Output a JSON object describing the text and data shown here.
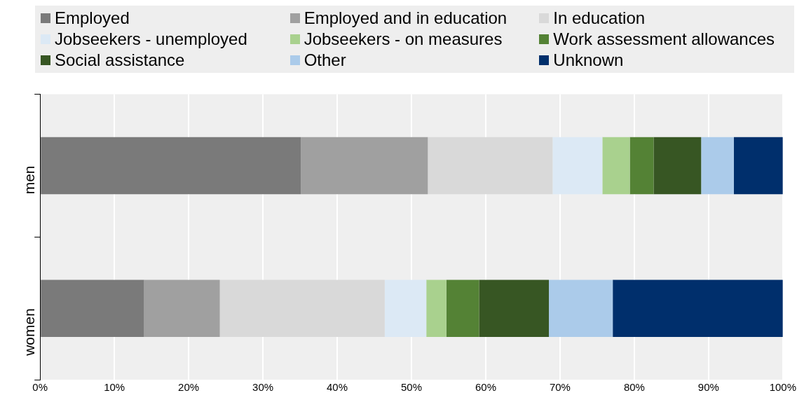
{
  "chart_data": {
    "type": "bar",
    "orientation": "horizontal",
    "stacked": true,
    "categories": [
      "men",
      "women"
    ],
    "series": [
      {
        "name": "Employed",
        "color": "#7a7a7a",
        "values": [
          35.1,
          14.0
        ]
      },
      {
        "name": "Employed and in education",
        "color": "#a0a0a0",
        "values": [
          17.1,
          10.2
        ]
      },
      {
        "name": "In education",
        "color": "#d9d9d9",
        "values": [
          16.8,
          22.2
        ]
      },
      {
        "name": "Jobseekers - unemployed",
        "color": "#dce9f5",
        "values": [
          6.7,
          5.6
        ]
      },
      {
        "name": "Jobseekers - on measures",
        "color": "#a9d18e",
        "values": [
          3.7,
          2.7
        ]
      },
      {
        "name": "Work assessment allowances",
        "color": "#548235",
        "values": [
          3.2,
          4.4
        ]
      },
      {
        "name": "Social assistance",
        "color": "#375623",
        "values": [
          6.4,
          9.4
        ]
      },
      {
        "name": "Other",
        "color": "#abcbea",
        "values": [
          4.4,
          8.6
        ]
      },
      {
        "name": "Unknown",
        "color": "#002f6c",
        "values": [
          6.6,
          22.9
        ]
      }
    ],
    "xlim": [
      0,
      100
    ],
    "xticks": [
      {
        "value": 0,
        "label": "0%"
      },
      {
        "value": 10,
        "label": "10%"
      },
      {
        "value": 20,
        "label": "20%"
      },
      {
        "value": 30,
        "label": "30%"
      },
      {
        "value": 40,
        "label": "40%"
      },
      {
        "value": 50,
        "label": "50%"
      },
      {
        "value": 60,
        "label": "60%"
      },
      {
        "value": 70,
        "label": "70%"
      },
      {
        "value": 80,
        "label": "80%"
      },
      {
        "value": 90,
        "label": "90%"
      },
      {
        "value": 100,
        "label": "100%"
      }
    ],
    "grid": "x",
    "legend": "top"
  }
}
